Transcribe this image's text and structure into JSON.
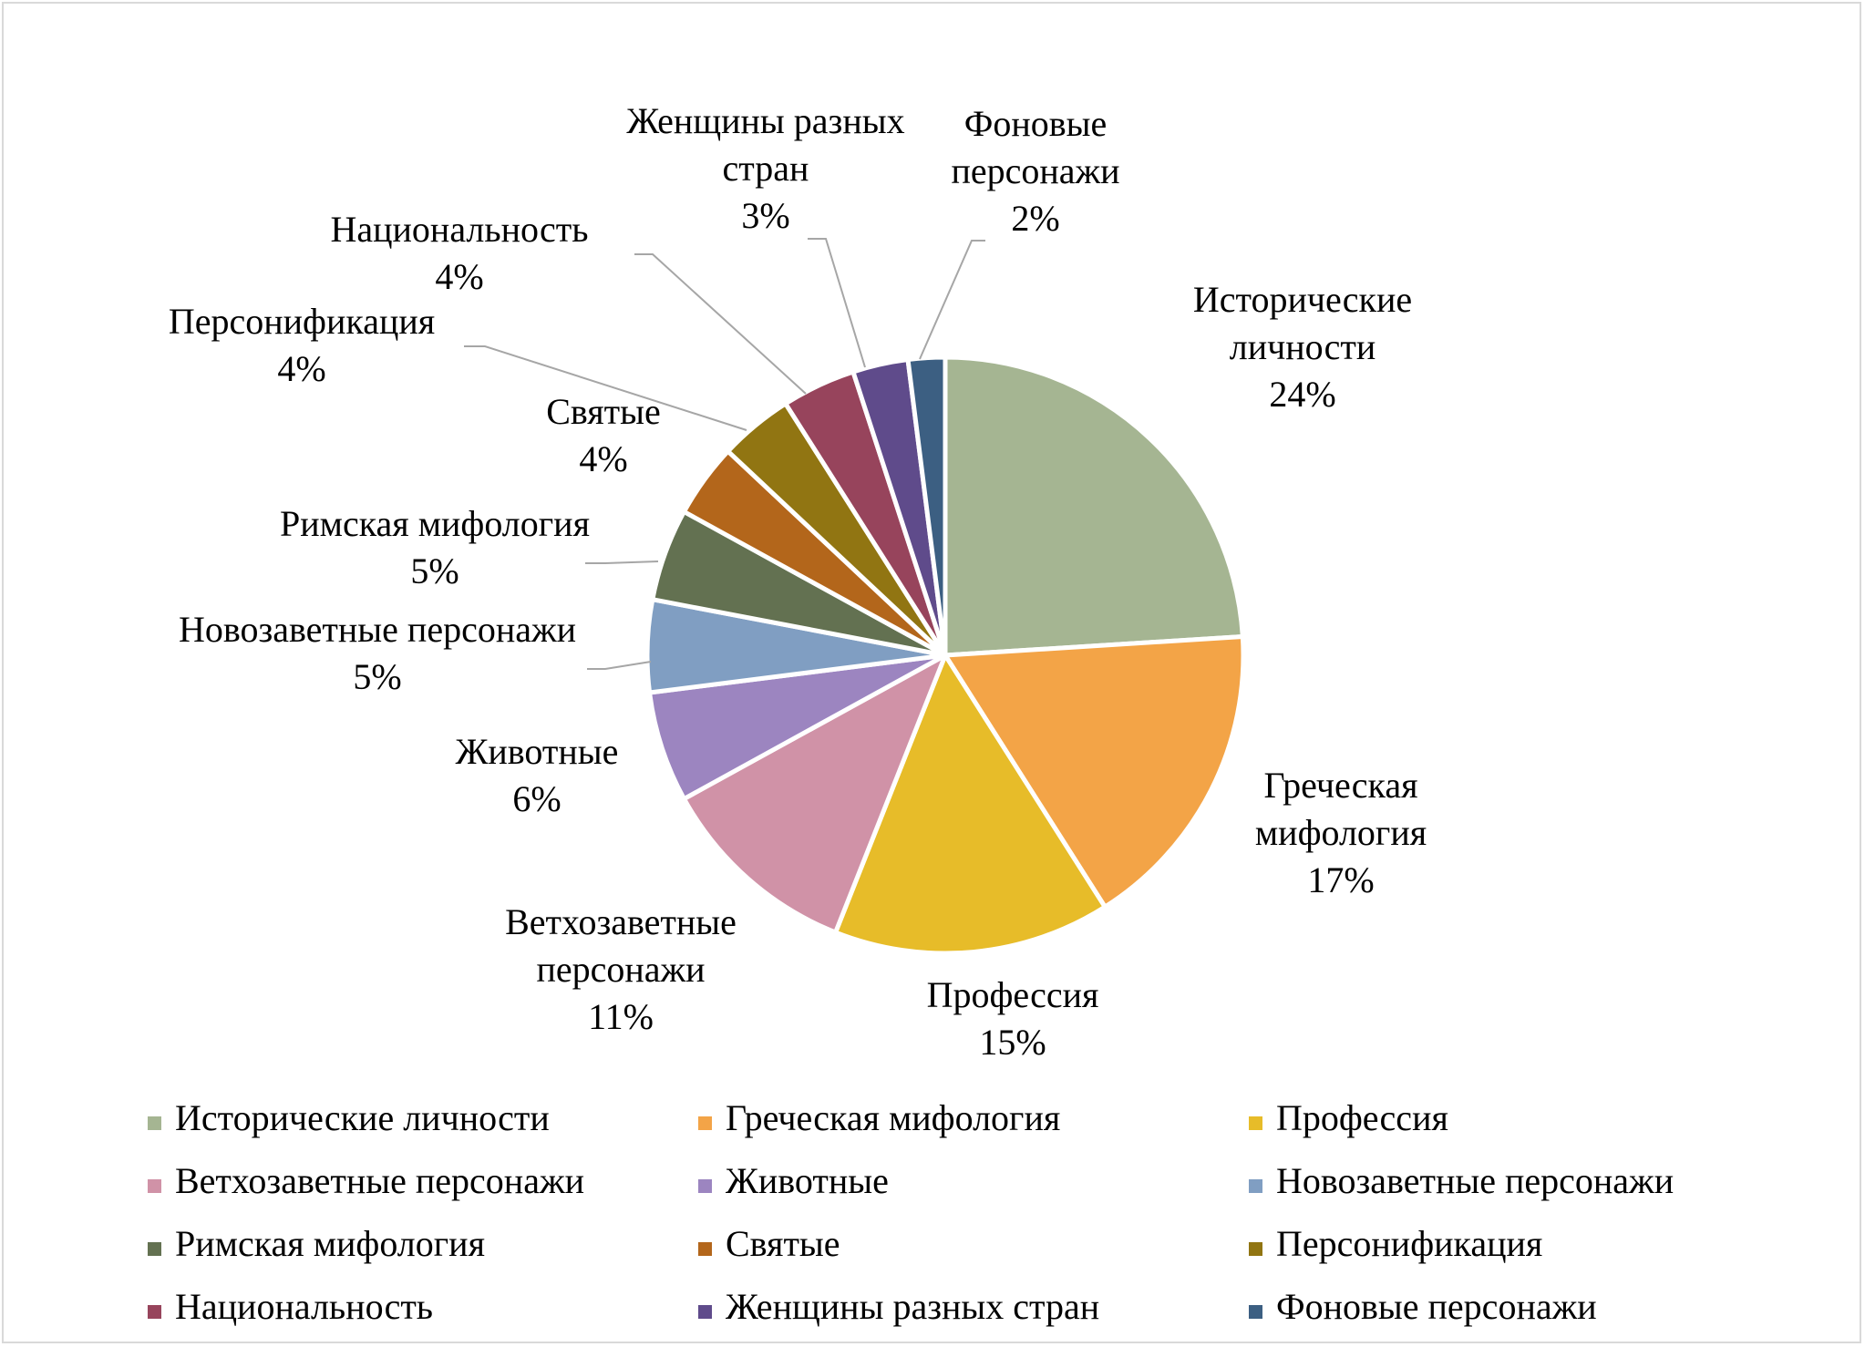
{
  "chart_data": {
    "type": "pie",
    "title": "",
    "categories": [
      "Исторические личности",
      "Греческая мифология",
      "Профессия",
      "Ветхозаветные персонажи",
      "Животные",
      "Новозаветные персонажи",
      "Римская мифология",
      "Святые",
      "Персонификация",
      "Национальность",
      "Женщины разных стран",
      "Фоновые персонажи"
    ],
    "values": [
      24,
      17,
      15,
      11,
      6,
      5,
      5,
      4,
      4,
      4,
      3,
      2
    ],
    "value_labels": [
      "24%",
      "17%",
      "15%",
      "11%",
      "6%",
      "5%",
      "5%",
      "4%",
      "4%",
      "4%",
      "3%",
      "2%"
    ],
    "colors": [
      "#a5b592",
      "#f3a447",
      "#e7bc29",
      "#d092a7",
      "#9c85c0",
      "#809ec2",
      "#637151",
      "#b3661b",
      "#917512",
      "#97445c",
      "#5f4b8b",
      "#3c5f82"
    ],
    "legend_position": "bottom",
    "data_labels": [
      {
        "name": "Исторические личности",
        "lines": [
          "Исторические",
          "личности"
        ],
        "value": "24%"
      },
      {
        "name": "Греческая мифология",
        "lines": [
          "Греческая",
          "мифология"
        ],
        "value": "17%"
      },
      {
        "name": "Профессия",
        "lines": [
          "Профессия"
        ],
        "value": "15%"
      },
      {
        "name": "Ветхозаветные персонажи",
        "lines": [
          "Ветхозаветные",
          "персонажи"
        ],
        "value": "11%"
      },
      {
        "name": "Животные",
        "lines": [
          "Животные"
        ],
        "value": "6%"
      },
      {
        "name": "Новозаветные персонажи",
        "lines": [
          "Новозаветные персонажи"
        ],
        "value": "5%"
      },
      {
        "name": "Римская мифология",
        "lines": [
          "Римская мифология"
        ],
        "value": "5%"
      },
      {
        "name": "Святые",
        "lines": [
          "Святые"
        ],
        "value": "4%"
      },
      {
        "name": "Персонификация",
        "lines": [
          "Персонификация"
        ],
        "value": "4%"
      },
      {
        "name": "Национальность",
        "lines": [
          "Национальность"
        ],
        "value": "4%"
      },
      {
        "name": "Женщины разных стран",
        "lines": [
          "Женщины разных",
          "стран"
        ],
        "value": "3%"
      },
      {
        "name": "Фоновые персонажи",
        "lines": [
          "Фоновые",
          "персонажи"
        ],
        "value": "2%"
      }
    ]
  }
}
